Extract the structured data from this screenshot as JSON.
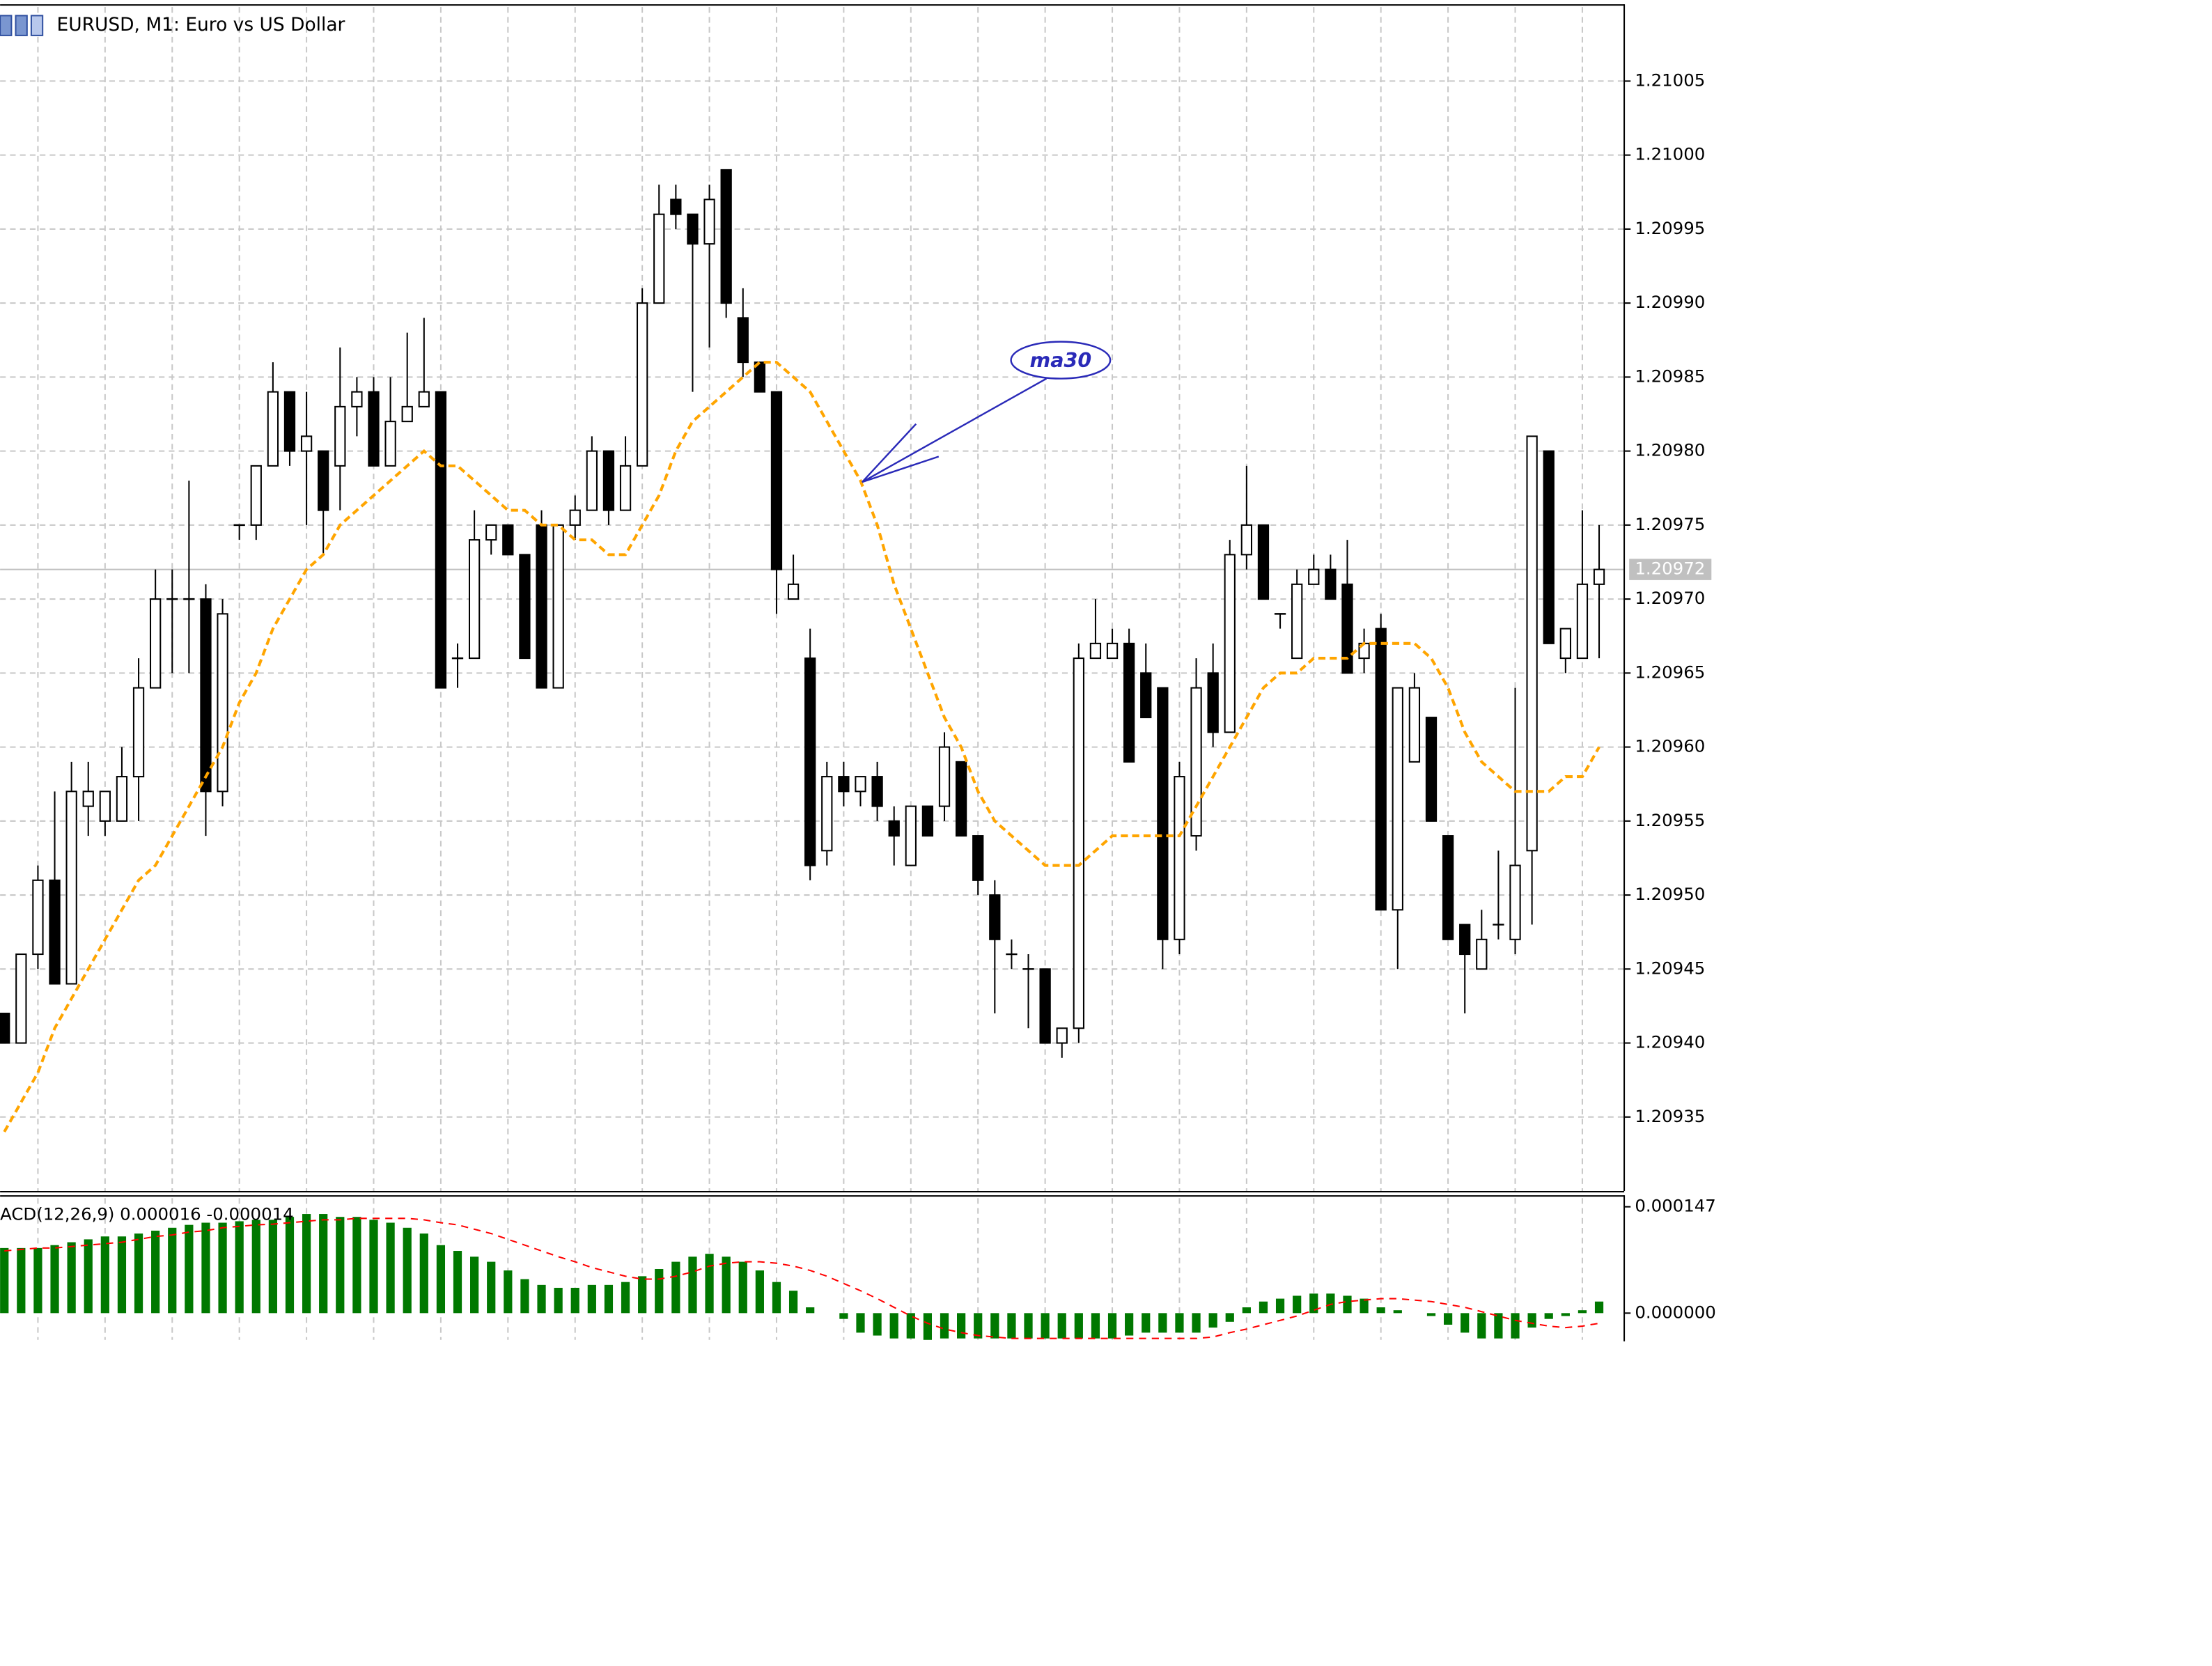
{
  "chart_data": [
    {
      "type": "candlestick",
      "title": "EURUSD, M1:  Euro vs US Dollar",
      "annotation": "ma30",
      "ylim": [
        1.2093,
        1.2101
      ],
      "yticks": [
        1.20935,
        {
          "value": 1.2094,
          "label": "1.20940"
        },
        1.20945,
        {
          "value": 1.2095,
          "label": "1.20950"
        },
        1.20955,
        {
          "value": 1.2096,
          "label": "1.20960"
        },
        1.20965,
        {
          "value": 1.2097,
          "label": "1.20970"
        },
        1.20975,
        {
          "value": 1.2098,
          "label": "1.20980"
        },
        1.20985,
        {
          "value": 1.2099,
          "label": "1.20990"
        },
        1.20995,
        {
          "value": 1.21,
          "label": "1.21000"
        },
        1.21005
      ],
      "grid": true,
      "current_price": 1.20972,
      "color": "#000000",
      "open": [
        1.20942,
        1.2094,
        1.20946,
        1.20951,
        1.20944,
        1.20956,
        1.20955,
        1.20955,
        1.20958,
        1.20964,
        1.2097,
        1.2097,
        1.2097,
        1.20957,
        1.20975,
        1.20975,
        1.20979,
        1.20984,
        1.2098,
        1.2098,
        1.20979,
        1.20983,
        1.20984,
        1.20979,
        1.20982,
        1.20983,
        1.20984,
        1.20966,
        1.20966,
        1.20974,
        1.20975,
        1.20973,
        1.20975,
        1.20964,
        1.20975,
        1.20976,
        1.2098,
        1.20976,
        1.20979,
        1.2099,
        1.20997,
        1.20996,
        1.20994,
        1.20999,
        1.20989,
        1.20986,
        1.20984,
        1.2097,
        1.20966,
        1.20953,
        1.20958,
        1.20957,
        1.20958,
        1.20955,
        1.20952,
        1.20956,
        1.20956,
        1.20959,
        1.20954,
        1.2095,
        1.20946,
        1.20945,
        1.20945,
        1.2094,
        1.20941,
        1.20966,
        1.20966,
        1.20967,
        1.20965,
        1.20964,
        1.20947,
        1.20954,
        1.20965,
        1.20961,
        1.20973,
        1.20975,
        1.20969,
        1.20966,
        1.20971,
        1.20972,
        1.20971,
        1.20966,
        1.20968,
        1.20949,
        1.20959,
        1.20962,
        1.20954,
        1.20948,
        1.20945,
        1.20948,
        1.20947,
        1.20953,
        1.2098,
        1.20966,
        1.20966,
        1.20971
      ],
      "high": [
        1.20942,
        1.20946,
        1.20952,
        1.20957,
        1.20959,
        1.20959,
        1.20957,
        1.2096,
        1.20966,
        1.20972,
        1.20972,
        1.20978,
        1.20971,
        1.2097,
        1.20975,
        1.20979,
        1.20986,
        1.20984,
        1.20984,
        1.2098,
        1.20987,
        1.20985,
        1.20985,
        1.20985,
        1.20988,
        1.20989,
        1.20984,
        1.20967,
        1.20976,
        1.20975,
        1.20975,
        1.20973,
        1.20976,
        1.20975,
        1.20977,
        1.20981,
        1.2098,
        1.20981,
        1.20991,
        1.20998,
        1.20998,
        1.20996,
        1.20998,
        1.20999,
        1.20991,
        1.20986,
        1.20984,
        1.20973,
        1.20968,
        1.20959,
        1.20959,
        1.20958,
        1.20959,
        1.20956,
        1.20956,
        1.20956,
        1.20961,
        1.20959,
        1.20954,
        1.20951,
        1.20947,
        1.20946,
        1.20945,
        1.20941,
        1.20967,
        1.2097,
        1.20968,
        1.20968,
        1.20967,
        1.20964,
        1.20959,
        1.20966,
        1.20967,
        1.20974,
        1.20979,
        1.20975,
        1.20969,
        1.20972,
        1.20973,
        1.20973,
        1.20974,
        1.20968,
        1.20969,
        1.20964,
        1.20965,
        1.20962,
        1.20954,
        1.20948,
        1.20949,
        1.20953,
        1.20964,
        1.20981,
        1.2098,
        1.20968,
        1.20976,
        1.20975
      ],
      "low": [
        1.2094,
        1.2094,
        1.20945,
        1.20944,
        1.20944,
        1.20954,
        1.20954,
        1.20955,
        1.20955,
        1.20964,
        1.20965,
        1.20965,
        1.20954,
        1.20956,
        1.20974,
        1.20974,
        1.20979,
        1.20979,
        1.20975,
        1.20973,
        1.20976,
        1.20981,
        1.20979,
        1.20979,
        1.20982,
        1.20983,
        1.20964,
        1.20964,
        1.20966,
        1.20973,
        1.20973,
        1.20966,
        1.20964,
        1.20964,
        1.20974,
        1.20976,
        1.20975,
        1.20976,
        1.20979,
        1.2099,
        1.20995,
        1.20984,
        1.20987,
        1.20989,
        1.20985,
        1.20984,
        1.20969,
        1.2097,
        1.20951,
        1.20952,
        1.20956,
        1.20956,
        1.20955,
        1.20952,
        1.20952,
        1.20954,
        1.20955,
        1.20954,
        1.2095,
        1.20942,
        1.20945,
        1.20941,
        1.2094,
        1.20939,
        1.2094,
        1.20966,
        1.20966,
        1.20959,
        1.20962,
        1.20945,
        1.20946,
        1.20953,
        1.2096,
        1.20961,
        1.20972,
        1.2097,
        1.20968,
        1.20966,
        1.20971,
        1.2097,
        1.20965,
        1.20965,
        1.20949,
        1.20945,
        1.20959,
        1.20955,
        1.20947,
        1.20942,
        1.20945,
        1.20947,
        1.20946,
        1.20948,
        1.20967,
        1.20965,
        1.20966,
        1.20966
      ],
      "close": [
        1.2094,
        1.20946,
        1.20951,
        1.20944,
        1.20957,
        1.20957,
        1.20957,
        1.20958,
        1.20964,
        1.2097,
        1.2097,
        1.2097,
        1.20957,
        1.20969,
        1.20975,
        1.20979,
        1.20984,
        1.2098,
        1.20981,
        1.20976,
        1.20983,
        1.20984,
        1.20979,
        1.20982,
        1.20983,
        1.20984,
        1.20964,
        1.20966,
        1.20974,
        1.20975,
        1.20973,
        1.20966,
        1.20964,
        1.20975,
        1.20976,
        1.2098,
        1.20976,
        1.20979,
        1.2099,
        1.20996,
        1.20996,
        1.20994,
        1.20997,
        1.2099,
        1.20986,
        1.20984,
        1.20972,
        1.20971,
        1.20952,
        1.20958,
        1.20957,
        1.20958,
        1.20956,
        1.20954,
        1.20956,
        1.20954,
        1.2096,
        1.20954,
        1.20951,
        1.20947,
        1.20946,
        1.20945,
        1.2094,
        1.20941,
        1.20966,
        1.20967,
        1.20967,
        1.20959,
        1.20962,
        1.20947,
        1.20958,
        1.20964,
        1.20961,
        1.20973,
        1.20975,
        1.2097,
        1.20969,
        1.20971,
        1.20972,
        1.2097,
        1.20965,
        1.20967,
        1.20949,
        1.20964,
        1.20964,
        1.20955,
        1.20947,
        1.20946,
        1.20947,
        1.20948,
        1.20952,
        1.20981,
        1.20967,
        1.20968,
        1.20971,
        1.20972
      ],
      "lines": [
        {
          "color": "#ffa500",
          "values": [
            1.20934,
            1.20936,
            1.20938,
            1.20941,
            1.20943,
            1.20945,
            1.20947,
            1.20949,
            1.20951,
            1.20952,
            1.20954,
            1.20956,
            1.20958,
            1.2096,
            1.20963,
            1.20965,
            1.20968,
            1.2097,
            1.20972,
            1.20973,
            1.20975,
            1.20976,
            1.20977,
            1.20978,
            1.20979,
            1.2098,
            1.20979,
            1.20979,
            1.20978,
            1.20977,
            1.20976,
            1.20976,
            1.20975,
            1.20975,
            1.20974,
            1.20974,
            1.20973,
            1.20973,
            1.20975,
            1.20977,
            1.2098,
            1.20982,
            1.20983,
            1.20984,
            1.20985,
            1.20986,
            1.20986,
            1.20985,
            1.20984,
            1.20982,
            1.2098,
            1.20978,
            1.20975,
            1.20971,
            1.20968,
            1.20965,
            1.20962,
            1.2096,
            1.20957,
            1.20955,
            1.20954,
            1.20953,
            1.20952,
            1.20952,
            1.20952,
            1.20953,
            1.20954,
            1.20954,
            1.20954,
            1.20954,
            1.20954,
            1.20956,
            1.20958,
            1.2096,
            1.20962,
            1.20964,
            1.20965,
            1.20965,
            1.20966,
            1.20966,
            1.20966,
            1.20967,
            1.20967,
            1.20967,
            1.20967,
            1.20966,
            1.20964,
            1.20961,
            1.20959,
            1.20958,
            1.20957,
            1.20957,
            1.20957,
            1.20958,
            1.20958,
            1.2096
          ]
        }
      ]
    },
    {
      "type": "bar",
      "title": "ACD(12,26,9) 0.000016 -0.000014",
      "ylim": [
        -3.7e-05,
        0.000159
      ],
      "yticks": [
        {
          "value": 0.000147,
          "label": "0.000147"
        },
        {
          "value": 0,
          "label": "0.000000"
        }
      ],
      "series": [
        {
          "mark": "bar",
          "color": "#007800",
          "values": [
            9e-05,
            9e-05,
            9e-05,
            9.4e-05,
            9.8e-05,
            0.000102,
            0.000106,
            0.000106,
            0.00011,
            0.000114,
            0.000118,
            0.000122,
            0.000125,
            0.000125,
            0.000127,
            0.000129,
            0.000129,
            0.000133,
            0.000137,
            0.000137,
            0.000133,
            0.000133,
            0.000129,
            0.000125,
            0.000118,
            0.00011,
            9.4e-05,
            8.6e-05,
            7.8e-05,
            7.1e-05,
            5.9e-05,
            4.7e-05,
            3.9e-05,
            3.5e-05,
            3.5e-05,
            3.9e-05,
            3.9e-05,
            4.3e-05,
            5.1e-05,
            6.1e-05,
            7.1e-05,
            7.8e-05,
            8.2e-05,
            7.8e-05,
            7.1e-05,
            5.9e-05,
            4.3e-05,
            3.1e-05,
            8e-06,
            0,
            -8e-06,
            -2.7e-05,
            -3.1e-05,
            -3.5e-05,
            -3.5e-05,
            -3.7e-05,
            -3.5e-05,
            -3.5e-05,
            -3.5e-05,
            -3.5e-05,
            -3.5e-05,
            -3.5e-05,
            -3.5e-05,
            -3.5e-05,
            -3.5e-05,
            -3.5e-05,
            -3.5e-05,
            -3.1e-05,
            -2.7e-05,
            -2.7e-05,
            -2.7e-05,
            -2.7e-05,
            -2e-05,
            -1.2e-05,
            8e-06,
            1.6e-05,
            2e-05,
            2.4e-05,
            2.7e-05,
            2.7e-05,
            2.4e-05,
            2e-05,
            8e-06,
            4e-06,
            0,
            -4e-06,
            -1.6e-05,
            -2.7e-05,
            -3.5e-05,
            -3.5e-05,
            -3.5e-05,
            -2e-05,
            -8e-06,
            -4e-06,
            4e-06,
            1.6e-05
          ]
        },
        {
          "mark": "line",
          "color": "#ff0000",
          "values": [
            8.6e-05,
            8.8e-05,
            9e-05,
            9e-05,
            9.2e-05,
            9.4e-05,
            9.6e-05,
            9.8e-05,
            0.000102,
            0.000106,
            0.000108,
            0.000112,
            0.000114,
            0.000118,
            0.00012,
            0.000122,
            0.000123,
            0.000125,
            0.000127,
            0.000129,
            0.000129,
            0.000131,
            0.000131,
            0.000131,
            0.000131,
            0.000129,
            0.000125,
            0.000122,
            0.000116,
            0.00011,
            0.000102,
            9.4e-05,
            8.6e-05,
            7.8e-05,
            7.1e-05,
            6.3e-05,
            5.7e-05,
            5.1e-05,
            4.7e-05,
            4.7e-05,
            5.1e-05,
            5.7e-05,
            6.5e-05,
            6.9e-05,
            7.1e-05,
            7.1e-05,
            6.9e-05,
            6.5e-05,
            5.9e-05,
            5.1e-05,
            4.1e-05,
            3.1e-05,
            2e-05,
            8e-06,
            -4e-06,
            -1.4e-05,
            -2.2e-05,
            -2.7e-05,
            -3.1e-05,
            -3.3e-05,
            -3.5e-05,
            -3.5e-05,
            -3.5e-05,
            -3.5e-05,
            -3.5e-05,
            -3.5e-05,
            -3.5e-05,
            -3.5e-05,
            -3.5e-05,
            -3.5e-05,
            -3.5e-05,
            -3.5e-05,
            -3.3e-05,
            -2.7e-05,
            -2.2e-05,
            -1.6e-05,
            -1e-05,
            -4e-06,
            4e-06,
            1.2e-05,
            1.6e-05,
            1.8e-05,
            2e-05,
            2e-05,
            1.8e-05,
            1.6e-05,
            1.2e-05,
            8e-06,
            2e-06,
            -4e-06,
            -1e-05,
            -1.4e-05,
            -1.8e-05,
            -2e-05,
            -1.8e-05,
            -1.4e-05
          ]
        }
      ]
    }
  ]
}
